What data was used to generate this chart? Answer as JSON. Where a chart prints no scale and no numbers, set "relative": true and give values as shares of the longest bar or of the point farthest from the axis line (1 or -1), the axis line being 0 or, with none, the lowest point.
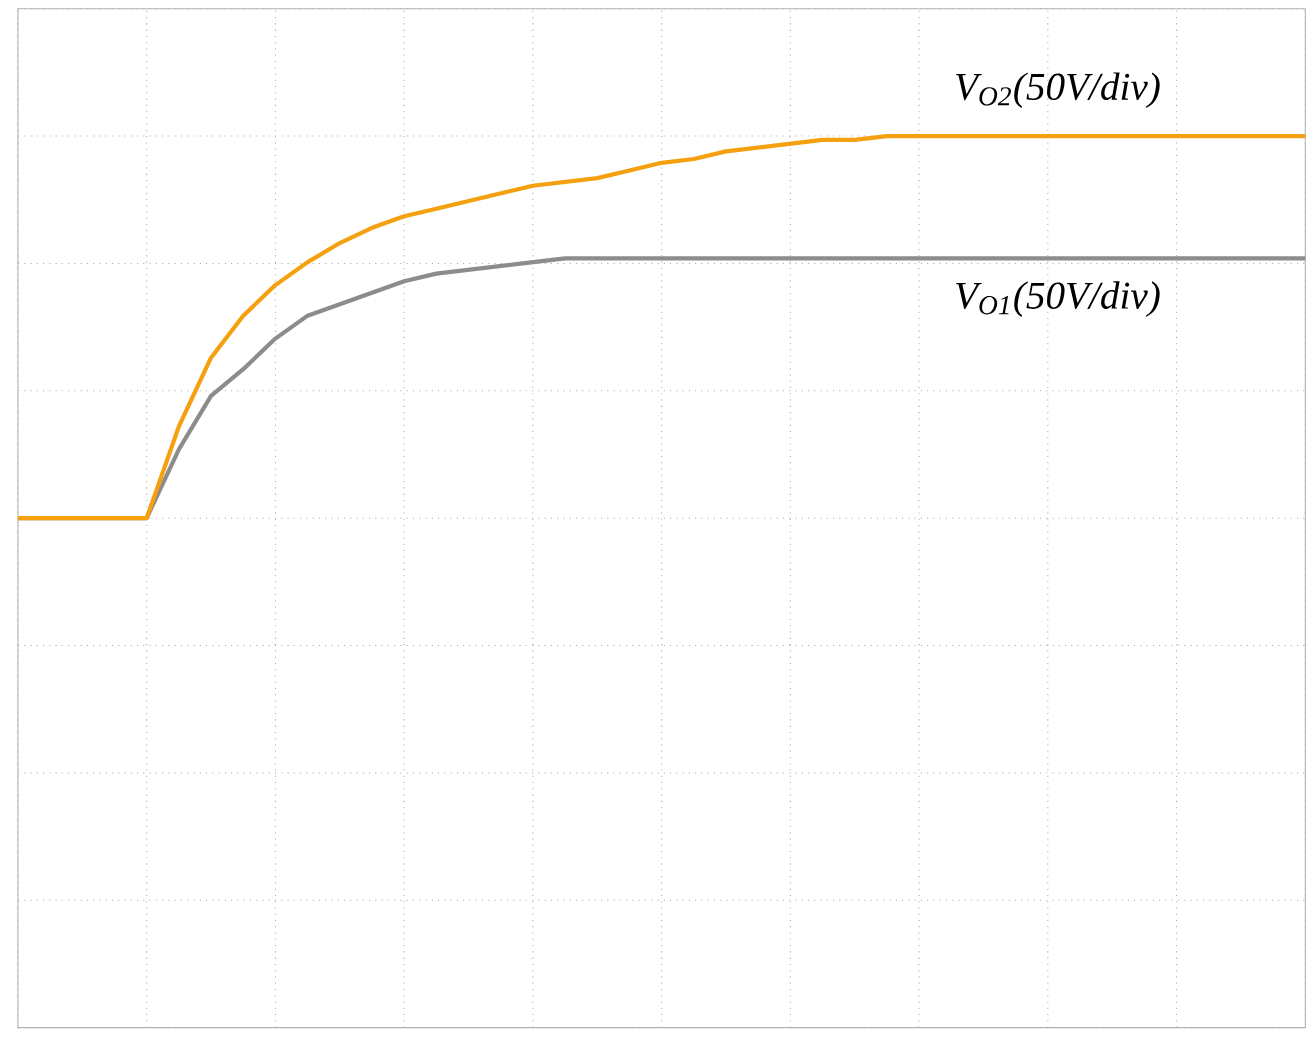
{
  "chart_data": {
    "type": "line",
    "relative": true,
    "grid": true,
    "categories": [
      null,
      null,
      null,
      null,
      null,
      null,
      null,
      null,
      null,
      null,
      null,
      null,
      null,
      null,
      null,
      null,
      null,
      null,
      null,
      null,
      null,
      null,
      null,
      null,
      null,
      null,
      null,
      null,
      null,
      null,
      null,
      null,
      null,
      null,
      null,
      null,
      null,
      null,
      null,
      null,
      null
    ],
    "series": [
      {
        "name": "V$_{O2}$(50V/div)",
        "color": "#f5a00f",
        "values": [
          0,
          0,
          0,
          0,
          0,
          0.24,
          0.42,
          0.53,
          0.61,
          0.67,
          0.72,
          0.76,
          0.79,
          0.81,
          0.83,
          0.85,
          0.87,
          0.88,
          0.89,
          0.91,
          0.93,
          0.94,
          0.96,
          0.97,
          0.98,
          0.99,
          0.99,
          1,
          1,
          1,
          1,
          1,
          1,
          1,
          1,
          1,
          1,
          1,
          1,
          1,
          1
        ]
      },
      {
        "name": "V$_{O1}$(50V/div)",
        "color": "#8c8c8c",
        "values": [
          0,
          0,
          0,
          0,
          0,
          0.18,
          0.32,
          0.39,
          0.47,
          0.53,
          0.56,
          0.59,
          0.62,
          0.64,
          0.65,
          0.66,
          0.67,
          0.68,
          0.68,
          0.68,
          0.68,
          0.68,
          0.68,
          0.68,
          0.68,
          0.68,
          0.68,
          0.68,
          0.68,
          0.68,
          0.68,
          0.68,
          0.68,
          0.68,
          0.68,
          0.68,
          0.68,
          0.68,
          0.68,
          0.68,
          0.68
        ]
      }
    ]
  }
}
